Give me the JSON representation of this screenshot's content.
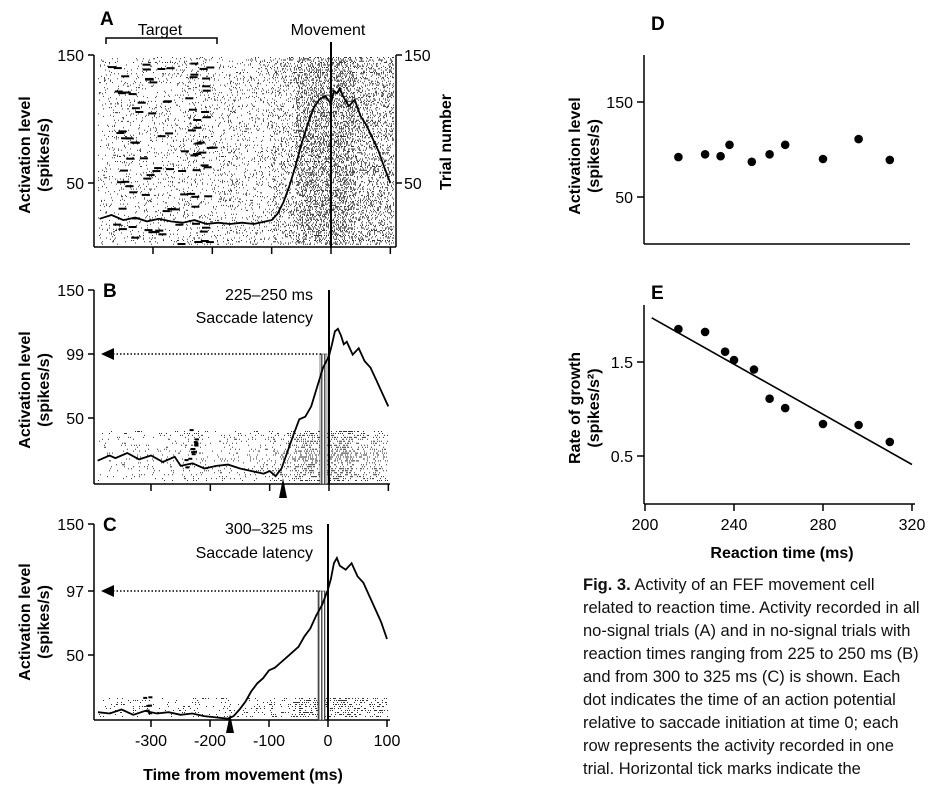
{
  "caption": {
    "fig_label": "Fig. 3.",
    "text": " Activity of an FEF movement cell related to reaction time. Activity recorded in all no-signal trials (A) and in no-signal trials with reaction times ranging from 225 to 250 ms (B) and from 300 to 325 ms (C) is shown. Each dot indicates the time of an action potential relative to saccade initiation at time 0; each row represents the activity recorded in one trial. Horizontal tick marks indicate the"
  },
  "chart_data": [
    {
      "panel": "A",
      "type": "line",
      "ylabel": "Activation level (spikes/s)",
      "ylabel_right": "Trial number",
      "y_ticks": [
        50,
        150
      ],
      "y_ticks_right": [
        50,
        150
      ],
      "ylim": [
        0,
        150
      ],
      "xlim": [
        -400,
        100
      ],
      "annotations": [
        "Target",
        "Movement"
      ],
      "raster": true,
      "series": [
        {
          "x": [
            -390,
            -370,
            -350,
            -330,
            -310,
            -290,
            -270,
            -250,
            -230,
            -210,
            -190,
            -170,
            -150,
            -130,
            -110,
            -100,
            -90,
            -80,
            -70,
            -60,
            -50,
            -40,
            -30,
            -20,
            -10,
            0,
            5,
            10,
            15,
            20,
            30,
            40,
            50,
            60,
            70,
            80,
            90,
            100
          ],
          "values": [
            22,
            25,
            21,
            23,
            20,
            22,
            20,
            19,
            21,
            18,
            19,
            18,
            19,
            18,
            20,
            21,
            26,
            35,
            48,
            63,
            80,
            95,
            108,
            115,
            118,
            112,
            122,
            120,
            124,
            118,
            110,
            115,
            102,
            95,
            85,
            75,
            62,
            50
          ]
        }
      ]
    },
    {
      "panel": "B",
      "type": "line",
      "ylabel": "Activation level (spikes/s)",
      "y_ticks": [
        50,
        99,
        150
      ],
      "ylim": [
        0,
        150
      ],
      "xlim": [
        -400,
        100
      ],
      "annotations": [
        "225–250 ms",
        "Saccade latency"
      ],
      "threshold": 99,
      "latency_marker_x": -75,
      "raster": true,
      "series": [
        {
          "x": [
            -390,
            -370,
            -360,
            -340,
            -320,
            -300,
            -280,
            -260,
            -250,
            -230,
            -210,
            -190,
            -170,
            -150,
            -130,
            -110,
            -100,
            -90,
            -80,
            -70,
            -60,
            -50,
            -40,
            -30,
            -20,
            -10,
            0,
            5,
            10,
            15,
            20,
            25,
            30,
            40,
            50,
            60,
            70,
            80,
            90,
            100
          ],
          "values": [
            18,
            22,
            20,
            24,
            19,
            22,
            17,
            21,
            14,
            16,
            12,
            14,
            15,
            12,
            10,
            8,
            10,
            6,
            12,
            25,
            38,
            50,
            52,
            60,
            75,
            90,
            99,
            108,
            118,
            120,
            115,
            108,
            110,
            100,
            105,
            95,
            90,
            80,
            70,
            60
          ]
        }
      ]
    },
    {
      "panel": "C",
      "type": "line",
      "ylabel": "Activation level (spikes/s)",
      "y_ticks": [
        50,
        97,
        150
      ],
      "x_ticks": [
        -300,
        -200,
        -100,
        0,
        100
      ],
      "ylim": [
        0,
        150
      ],
      "xlim": [
        -400,
        100
      ],
      "xlabel": "Time from movement (ms)",
      "annotations": [
        "300–325 ms",
        "Saccade latency"
      ],
      "threshold": 97,
      "latency_marker_x": -160,
      "raster": true,
      "series": [
        {
          "x": [
            -390,
            -370,
            -350,
            -330,
            -310,
            -290,
            -270,
            -250,
            -230,
            -210,
            -190,
            -170,
            -160,
            -150,
            -140,
            -130,
            -120,
            -110,
            -100,
            -90,
            -80,
            -70,
            -60,
            -50,
            -40,
            -30,
            -20,
            -10,
            0,
            5,
            10,
            15,
            20,
            30,
            40,
            50,
            60,
            70,
            80,
            90,
            100
          ],
          "values": [
            6,
            5,
            8,
            4,
            7,
            5,
            6,
            4,
            5,
            3,
            2,
            1,
            3,
            8,
            14,
            22,
            28,
            32,
            38,
            40,
            44,
            48,
            52,
            56,
            64,
            70,
            80,
            88,
            100,
            108,
            120,
            124,
            118,
            115,
            120,
            110,
            105,
            95,
            85,
            75,
            62
          ]
        }
      ]
    },
    {
      "panel": "D",
      "type": "scatter",
      "ylabel": "Activation level (spikes/s)",
      "y_ticks": [
        50,
        150
      ],
      "ylim": [
        0,
        200
      ],
      "xlim": [
        200,
        320
      ],
      "x": [
        215,
        227,
        234,
        238,
        248,
        256,
        263,
        280,
        296,
        310
      ],
      "values": [
        92,
        95,
        93,
        105,
        87,
        95,
        105,
        90,
        111,
        89
      ]
    },
    {
      "panel": "E",
      "type": "scatter",
      "ylabel": "Rate of growth (spikes/s²)",
      "y_ticks": [
        0.5,
        1.5
      ],
      "x_ticks": [
        200,
        240,
        280,
        320
      ],
      "xlabel": "Reaction time (ms)",
      "ylim": [
        0.3,
        2.0
      ],
      "xlim": [
        200,
        320
      ],
      "x": [
        215,
        227,
        236,
        240,
        249,
        256,
        263,
        280,
        296,
        310
      ],
      "values": [
        1.85,
        1.82,
        1.61,
        1.52,
        1.42,
        1.11,
        1.01,
        0.84,
        0.83,
        0.65
      ],
      "fit_line": {
        "x": [
          203,
          320
        ],
        "values": [
          1.97,
          0.41
        ]
      }
    }
  ]
}
